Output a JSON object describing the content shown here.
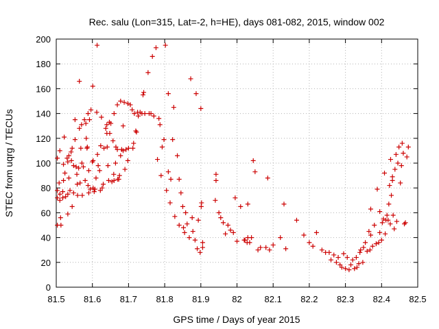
{
  "chart_data": {
    "type": "scatter",
    "title": "Rec. salu (Lon=315, Lat=-2, h=HE), days 081-082, 2015, window 002",
    "xlabel": "GPS time / Days of year 2015",
    "ylabel": "STEC from uqrg / TECUs",
    "xlim": [
      81.5,
      82.5
    ],
    "ylim": [
      0,
      200
    ],
    "xticks": [
      "81.5",
      "81.6",
      "81.7",
      "81.8",
      "81.9",
      "82",
      "82.1",
      "82.2",
      "82.3",
      "82.4",
      "82.5"
    ],
    "yticks": [
      "0",
      "20",
      "40",
      "60",
      "80",
      "100",
      "120",
      "140",
      "160",
      "180",
      "200"
    ],
    "grid": true,
    "marker": "plus",
    "color": "#cc0000",
    "points": [
      [
        81.503,
        104
      ],
      [
        81.503,
        78
      ],
      [
        81.503,
        72
      ],
      [
        81.503,
        50
      ],
      [
        81.508,
        84
      ],
      [
        81.51,
        110
      ],
      [
        81.51,
        75
      ],
      [
        81.51,
        70
      ],
      [
        81.512,
        56
      ],
      [
        81.513,
        50
      ],
      [
        81.518,
        77
      ],
      [
        81.518,
        72
      ],
      [
        81.52,
        99
      ],
      [
        81.52,
        86
      ],
      [
        81.522,
        121
      ],
      [
        81.524,
        92
      ],
      [
        81.526,
        73
      ],
      [
        81.53,
        104
      ],
      [
        81.532,
        101
      ],
      [
        81.532,
        75
      ],
      [
        81.532,
        59
      ],
      [
        81.535,
        106
      ],
      [
        81.535,
        88
      ],
      [
        81.538,
        78
      ],
      [
        81.541,
        109
      ],
      [
        81.542,
        102
      ],
      [
        81.544,
        112
      ],
      [
        81.544,
        65
      ],
      [
        81.548,
        98
      ],
      [
        81.548,
        76
      ],
      [
        81.552,
        135
      ],
      [
        81.552,
        119
      ],
      [
        81.555,
        97
      ],
      [
        81.557,
        91
      ],
      [
        81.558,
        83
      ],
      [
        81.559,
        74
      ],
      [
        81.562,
        96
      ],
      [
        81.564,
        128
      ],
      [
        81.564,
        166
      ],
      [
        81.566,
        84
      ],
      [
        81.568,
        112
      ],
      [
        81.57,
        131
      ],
      [
        81.571,
        100
      ],
      [
        81.572,
        74
      ],
      [
        81.575,
        97
      ],
      [
        81.578,
        135
      ],
      [
        81.58,
        86
      ],
      [
        81.582,
        132
      ],
      [
        81.583,
        120
      ],
      [
        81.585,
        112
      ],
      [
        81.586,
        113
      ],
      [
        81.588,
        140
      ],
      [
        81.588,
        82
      ],
      [
        81.59,
        94
      ],
      [
        81.59,
        76
      ],
      [
        81.592,
        135
      ],
      [
        81.594,
        79
      ],
      [
        81.596,
        143
      ],
      [
        81.6,
        101
      ],
      [
        81.601,
        162
      ],
      [
        81.602,
        102
      ],
      [
        81.602,
        80
      ],
      [
        81.605,
        77
      ],
      [
        81.607,
        79
      ],
      [
        81.61,
        88
      ],
      [
        81.612,
        141
      ],
      [
        81.613,
        195
      ],
      [
        81.614,
        107
      ],
      [
        81.616,
        98
      ],
      [
        81.62,
        94
      ],
      [
        81.622,
        78
      ],
      [
        81.623,
        114
      ],
      [
        81.625,
        137
      ],
      [
        81.627,
        80
      ],
      [
        81.63,
        83
      ],
      [
        81.632,
        112
      ],
      [
        81.637,
        128
      ],
      [
        81.64,
        131
      ],
      [
        81.64,
        124
      ],
      [
        81.641,
        113
      ],
      [
        81.643,
        98
      ],
      [
        81.645,
        86
      ],
      [
        81.647,
        133
      ],
      [
        81.648,
        124
      ],
      [
        81.651,
        132
      ],
      [
        81.654,
        85
      ],
      [
        81.657,
        118
      ],
      [
        81.659,
        91
      ],
      [
        81.66,
        140
      ],
      [
        81.66,
        86
      ],
      [
        81.664,
        100
      ],
      [
        81.665,
        113
      ],
      [
        81.669,
        147
      ],
      [
        81.669,
        111
      ],
      [
        81.67,
        87
      ],
      [
        81.673,
        87
      ],
      [
        81.675,
        90
      ],
      [
        81.678,
        150
      ],
      [
        81.678,
        106
      ],
      [
        81.681,
        111
      ],
      [
        81.685,
        130
      ],
      [
        81.685,
        110
      ],
      [
        81.688,
        149
      ],
      [
        81.69,
        95
      ],
      [
        81.693,
        111
      ],
      [
        81.698,
        148
      ],
      [
        81.698,
        102
      ],
      [
        81.7,
        112
      ],
      [
        81.705,
        147
      ],
      [
        81.71,
        143
      ],
      [
        81.712,
        112
      ],
      [
        81.714,
        116
      ],
      [
        81.716,
        140
      ],
      [
        81.72,
        126
      ],
      [
        81.722,
        125
      ],
      [
        81.725,
        141
      ],
      [
        81.727,
        138
      ],
      [
        81.732,
        141
      ],
      [
        81.737,
        140
      ],
      [
        81.74,
        155
      ],
      [
        81.742,
        157
      ],
      [
        81.745,
        140
      ],
      [
        81.754,
        173
      ],
      [
        81.757,
        140
      ],
      [
        81.762,
        140
      ],
      [
        81.766,
        186
      ],
      [
        81.77,
        138
      ],
      [
        81.776,
        193
      ],
      [
        81.78,
        103
      ],
      [
        81.784,
        136
      ],
      [
        81.787,
        131
      ],
      [
        81.79,
        90
      ],
      [
        81.793,
        113
      ],
      [
        81.798,
        119
      ],
      [
        81.802,
        195
      ],
      [
        81.805,
        78
      ],
      [
        81.81,
        156
      ],
      [
        81.81,
        93
      ],
      [
        81.815,
        68
      ],
      [
        81.817,
        87
      ],
      [
        81.822,
        119
      ],
      [
        81.825,
        145
      ],
      [
        81.828,
        57
      ],
      [
        81.835,
        106
      ],
      [
        81.84,
        50
      ],
      [
        81.84,
        87
      ],
      [
        81.845,
        76
      ],
      [
        81.85,
        65
      ],
      [
        81.852,
        48
      ],
      [
        81.855,
        44
      ],
      [
        81.858,
        60
      ],
      [
        81.862,
        51
      ],
      [
        81.868,
        40
      ],
      [
        81.872,
        168
      ],
      [
        81.876,
        56
      ],
      [
        81.878,
        45
      ],
      [
        81.884,
        38
      ],
      [
        81.887,
        156
      ],
      [
        81.89,
        31
      ],
      [
        81.893,
        54
      ],
      [
        81.898,
        28
      ],
      [
        81.9,
        144
      ],
      [
        81.901,
        65
      ],
      [
        81.902,
        68
      ],
      [
        81.905,
        36
      ],
      [
        81.905,
        32
      ],
      [
        81.94,
        70
      ],
      [
        81.942,
        91
      ],
      [
        81.942,
        86
      ],
      [
        81.95,
        60
      ],
      [
        81.955,
        56
      ],
      [
        81.962,
        52
      ],
      [
        81.968,
        43
      ],
      [
        81.975,
        50
      ],
      [
        81.982,
        46
      ],
      [
        81.99,
        44
      ],
      [
        81.995,
        72
      ],
      [
        82.0,
        37
      ],
      [
        82.01,
        65
      ],
      [
        82.02,
        38
      ],
      [
        82.022,
        38
      ],
      [
        82.028,
        36
      ],
      [
        82.03,
        67
      ],
      [
        82.03,
        40
      ],
      [
        82.035,
        36
      ],
      [
        82.04,
        40
      ],
      [
        82.045,
        102
      ],
      [
        82.05,
        93
      ],
      [
        82.058,
        30
      ],
      [
        82.065,
        32
      ],
      [
        82.08,
        32
      ],
      [
        82.085,
        88
      ],
      [
        82.09,
        30
      ],
      [
        82.1,
        34
      ],
      [
        82.12,
        40
      ],
      [
        82.13,
        67
      ],
      [
        82.135,
        31
      ],
      [
        82.165,
        54
      ],
      [
        82.185,
        42
      ],
      [
        82.2,
        36
      ],
      [
        82.21,
        33
      ],
      [
        82.22,
        44
      ],
      [
        82.235,
        30
      ],
      [
        82.245,
        28
      ],
      [
        82.255,
        28
      ],
      [
        82.26,
        22
      ],
      [
        82.268,
        26
      ],
      [
        82.275,
        20
      ],
      [
        82.28,
        24
      ],
      [
        82.285,
        18
      ],
      [
        82.29,
        16
      ],
      [
        82.295,
        27
      ],
      [
        82.3,
        15
      ],
      [
        82.305,
        24
      ],
      [
        82.31,
        14
      ],
      [
        82.315,
        18
      ],
      [
        82.32,
        22
      ],
      [
        82.325,
        15
      ],
      [
        82.33,
        24
      ],
      [
        82.332,
        16
      ],
      [
        82.337,
        19
      ],
      [
        82.34,
        28
      ],
      [
        82.342,
        30
      ],
      [
        82.348,
        20
      ],
      [
        82.35,
        32
      ],
      [
        82.355,
        36
      ],
      [
        82.36,
        29
      ],
      [
        82.365,
        45
      ],
      [
        82.368,
        30
      ],
      [
        82.37,
        42
      ],
      [
        82.37,
        63
      ],
      [
        82.375,
        33
      ],
      [
        82.38,
        50
      ],
      [
        82.385,
        35
      ],
      [
        82.388,
        79
      ],
      [
        82.392,
        36
      ],
      [
        82.395,
        44
      ],
      [
        82.395,
        61
      ],
      [
        82.4,
        38
      ],
      [
        82.402,
        52
      ],
      [
        82.405,
        55
      ],
      [
        82.408,
        92
      ],
      [
        82.41,
        43
      ],
      [
        82.412,
        54
      ],
      [
        82.415,
        58
      ],
      [
        82.418,
        54
      ],
      [
        82.42,
        67
      ],
      [
        82.422,
        82
      ],
      [
        82.424,
        51
      ],
      [
        82.425,
        103
      ],
      [
        82.427,
        74
      ],
      [
        82.43,
        86
      ],
      [
        82.43,
        89
      ],
      [
        82.432,
        58
      ],
      [
        82.435,
        47
      ],
      [
        82.437,
        95
      ],
      [
        82.44,
        107
      ],
      [
        82.442,
        53
      ],
      [
        82.445,
        100
      ],
      [
        82.448,
        113
      ],
      [
        82.452,
        84
      ],
      [
        82.455,
        98
      ],
      [
        82.457,
        116
      ],
      [
        82.46,
        108
      ],
      [
        82.463,
        51
      ],
      [
        82.466,
        52
      ],
      [
        82.47,
        105
      ],
      [
        82.474,
        113
      ]
    ]
  }
}
